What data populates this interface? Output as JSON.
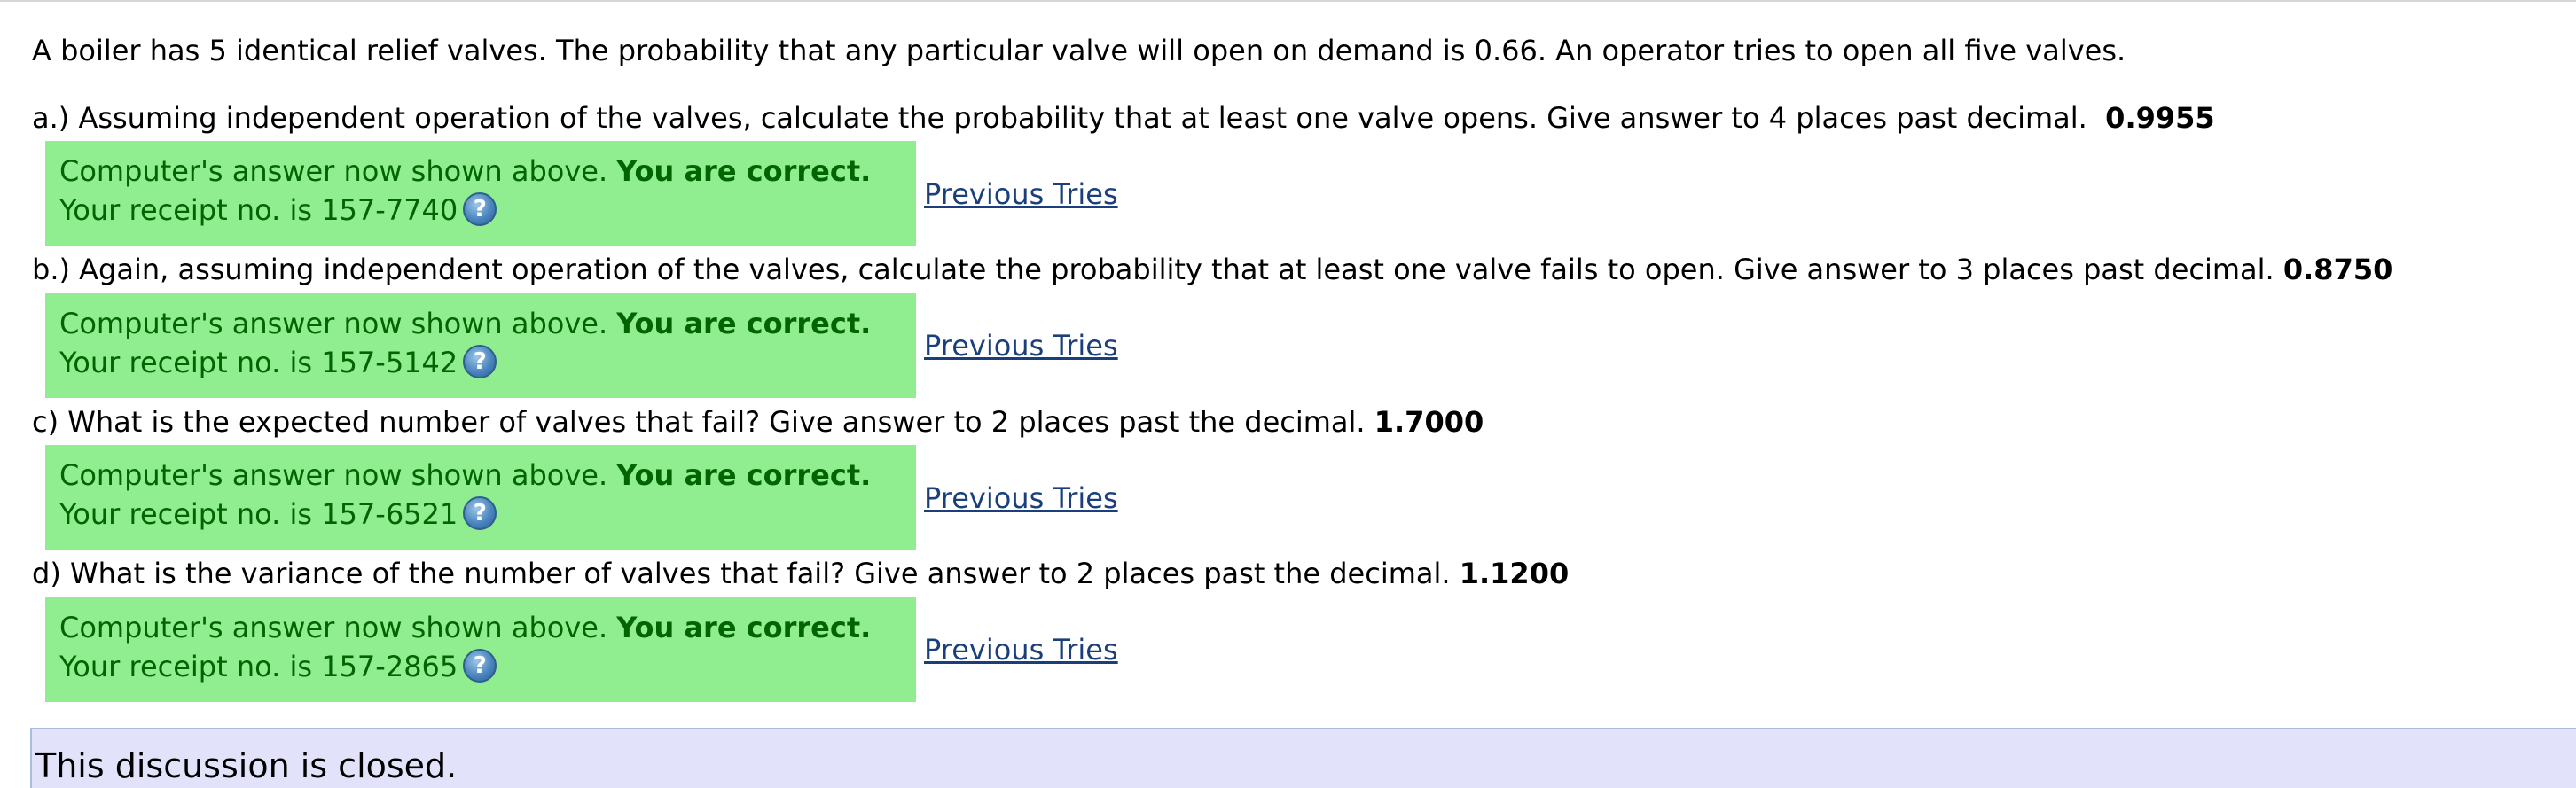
{
  "intro": "A boiler has 5 identical relief valves. The probability that any particular valve will open on demand is 0.66. An operator tries to open all five valves.",
  "questions": [
    {
      "prompt": "a.) Assuming independent operation of the valves, calculate the probability that at least one valve opens. Give answer to 4 places past decimal.",
      "answer": "0.9955",
      "feedback_shown": "Computer's answer now shown above.",
      "feedback_correct": "You are correct.",
      "receipt": "Your receipt no. is 157-7740",
      "previous_tries": "Previous Tries"
    },
    {
      "prompt": "b.) Again, assuming independent operation of the valves, calculate the probability that at least one valve fails to open. Give answer to 3 places past decimal.",
      "answer": "0.8750",
      "feedback_shown": "Computer's answer now shown above.",
      "feedback_correct": "You are correct.",
      "receipt": "Your receipt no. is 157-5142",
      "previous_tries": "Previous Tries"
    },
    {
      "prompt": "c) What is the expected number of valves that fail? Give answer to 2 places past the decimal.",
      "answer": "1.7000",
      "feedback_shown": "Computer's answer now shown above.",
      "feedback_correct": "You are correct.",
      "receipt": "Your receipt no. is 157-6521",
      "previous_tries": "Previous Tries"
    },
    {
      "prompt": "d) What is the variance of the number of valves that fail? Give answer to 2 places past the decimal.",
      "answer": "1.1200",
      "feedback_shown": "Computer's answer now shown above.",
      "feedback_correct": "You are correct.",
      "receipt": "Your receipt no. is 157-2865",
      "previous_tries": "Previous Tries"
    }
  ],
  "discussion": "This discussion is closed.",
  "colors": {
    "feedback_bg": "#90ee90",
    "feedback_text": "#006400",
    "link": "#1a3f7a",
    "discussion_bg": "#e2e3fb"
  },
  "icons": {
    "help": "help-question-icon"
  }
}
